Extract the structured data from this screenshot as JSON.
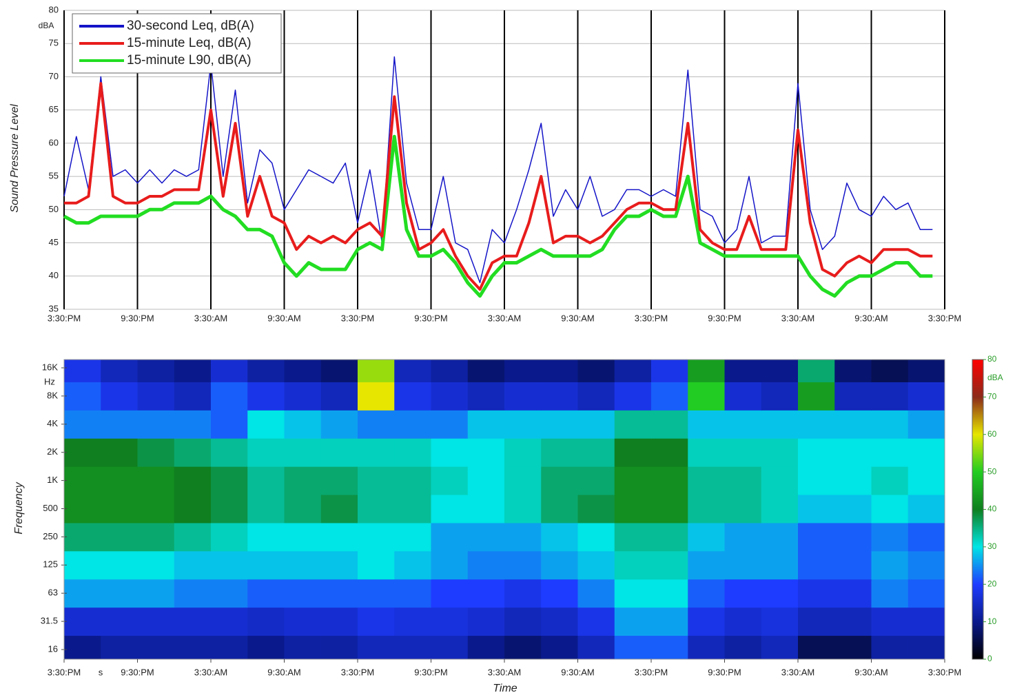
{
  "chart_data": [
    {
      "type": "line",
      "ylabel": "Sound Pressure Level",
      "y_unit": "dBA",
      "x": [
        0,
        1,
        2,
        3,
        4,
        5,
        6,
        7,
        8,
        9,
        10,
        11,
        12,
        13,
        14,
        15,
        16,
        17,
        18,
        19,
        20,
        21,
        22,
        23,
        24,
        25,
        26,
        27,
        28,
        29,
        30,
        31,
        32,
        33,
        34,
        35,
        36,
        37,
        38,
        39,
        40,
        41,
        42,
        43,
        44,
        45,
        46,
        47,
        48,
        49,
        50,
        51,
        52,
        53,
        54,
        55,
        56,
        57,
        58,
        59,
        60,
        61,
        62,
        63,
        64,
        65,
        66,
        67,
        68,
        69,
        70,
        71
      ],
      "series": [
        {
          "name": "30-second Leq, dB(A)",
          "color": "#1414c8",
          "values": [
            52,
            61,
            53,
            70,
            55,
            56,
            54,
            56,
            54,
            56,
            55,
            56,
            72,
            55,
            68,
            51,
            59,
            57,
            50,
            53,
            56,
            55,
            54,
            57,
            48,
            56,
            45,
            73,
            54,
            47,
            47,
            55,
            45,
            44,
            39,
            47,
            45,
            50,
            56,
            63,
            49,
            53,
            50,
            55,
            49,
            50,
            53,
            53,
            52,
            53,
            52,
            71,
            50,
            49,
            45,
            47,
            55,
            45,
            46,
            46,
            69,
            50,
            44,
            46,
            54,
            50,
            49,
            52,
            50,
            51,
            47,
            47
          ]
        },
        {
          "name": "15-minute Leq, dB(A)",
          "color": "#e81c1c",
          "values": [
            51,
            51,
            52,
            69,
            52,
            51,
            51,
            52,
            52,
            53,
            53,
            53,
            65,
            52,
            63,
            49,
            55,
            49,
            48,
            44,
            46,
            45,
            46,
            45,
            47,
            48,
            46,
            67,
            51,
            44,
            45,
            47,
            43,
            40,
            38,
            42,
            43,
            43,
            48,
            55,
            45,
            46,
            46,
            45,
            46,
            48,
            50,
            51,
            51,
            50,
            50,
            63,
            47,
            45,
            44,
            44,
            49,
            44,
            44,
            44,
            62,
            48,
            41,
            40,
            42,
            43,
            42,
            44,
            44,
            44,
            43,
            43
          ]
        },
        {
          "name": "15-minute L90, dB(A)",
          "color": "#22dd22",
          "values": [
            49,
            48,
            48,
            49,
            49,
            49,
            49,
            50,
            50,
            51,
            51,
            51,
            52,
            50,
            49,
            47,
            47,
            46,
            42,
            40,
            42,
            41,
            41,
            41,
            44,
            45,
            44,
            61,
            47,
            43,
            43,
            44,
            42,
            39,
            37,
            40,
            42,
            42,
            43,
            44,
            43,
            43,
            43,
            43,
            44,
            47,
            49,
            49,
            50,
            49,
            49,
            55,
            45,
            44,
            43,
            43,
            43,
            43,
            43,
            43,
            43,
            40,
            38,
            37,
            39,
            40,
            40,
            41,
            42,
            42,
            40,
            40
          ]
        }
      ],
      "xlim": [
        0,
        72
      ],
      "xticks": [
        {
          "value": 0,
          "label": "3:30:PM"
        },
        {
          "value": 6,
          "label": "9:30:PM"
        },
        {
          "value": 12,
          "label": "3:30:AM"
        },
        {
          "value": 18,
          "label": "9:30:AM"
        },
        {
          "value": 24,
          "label": "3:30:PM"
        },
        {
          "value": 30,
          "label": "9:30:PM"
        },
        {
          "value": 36,
          "label": "3:30:AM"
        },
        {
          "value": 42,
          "label": "9:30:AM"
        },
        {
          "value": 48,
          "label": "3:30:PM"
        },
        {
          "value": 54,
          "label": "9:30:PM"
        },
        {
          "value": 60,
          "label": "3:30:AM"
        },
        {
          "value": 66,
          "label": "9:30:AM"
        },
        {
          "value": 72,
          "label": "3:30:PM"
        }
      ],
      "ylim": [
        35,
        80
      ],
      "yticks": [
        35,
        40,
        45,
        50,
        55,
        60,
        65,
        70,
        75,
        80
      ],
      "grid": true,
      "legend": "upper-left"
    },
    {
      "type": "heatmap",
      "ylabel": "Frequency",
      "xlabel": "Time",
      "y_unit": "Hz",
      "x_note": "s",
      "y_categories": [
        "16",
        "31.5",
        "63",
        "125",
        "250",
        "500",
        "1K",
        "2K",
        "4K",
        "8K",
        "16K"
      ],
      "xbins": [
        0,
        3,
        6,
        9,
        12,
        15,
        18,
        21,
        24,
        27,
        30,
        33,
        36,
        39,
        42,
        45,
        48,
        51,
        54,
        57,
        60,
        63,
        66,
        69,
        72
      ],
      "values": [
        [
          10,
          12,
          12,
          12,
          12,
          10,
          12,
          12,
          14,
          14,
          14,
          10,
          8,
          10,
          14,
          22,
          22,
          14,
          12,
          14,
          6,
          6,
          12,
          12
        ],
        [
          16,
          16,
          16,
          16,
          16,
          15,
          16,
          16,
          18,
          17,
          17,
          16,
          14,
          15,
          18,
          26,
          26,
          18,
          16,
          17,
          14,
          14,
          16,
          16
        ],
        [
          26,
          26,
          26,
          24,
          24,
          22,
          22,
          22,
          22,
          22,
          20,
          20,
          18,
          20,
          24,
          30,
          30,
          22,
          20,
          20,
          18,
          18,
          24,
          22
        ],
        [
          30,
          30,
          30,
          28,
          28,
          28,
          28,
          28,
          30,
          28,
          26,
          24,
          24,
          26,
          28,
          32,
          32,
          26,
          26,
          26,
          22,
          22,
          26,
          24
        ],
        [
          36,
          36,
          36,
          34,
          32,
          30,
          30,
          30,
          30,
          30,
          26,
          26,
          26,
          28,
          30,
          34,
          34,
          28,
          26,
          26,
          22,
          22,
          24,
          22
        ],
        [
          42,
          42,
          42,
          40,
          38,
          34,
          36,
          38,
          34,
          34,
          30,
          30,
          32,
          36,
          38,
          42,
          42,
          34,
          34,
          32,
          28,
          28,
          30,
          28
        ],
        [
          42,
          42,
          42,
          40,
          38,
          34,
          36,
          36,
          34,
          34,
          32,
          30,
          32,
          36,
          36,
          42,
          42,
          34,
          34,
          32,
          30,
          30,
          32,
          30
        ],
        [
          40,
          40,
          38,
          36,
          34,
          32,
          32,
          32,
          32,
          32,
          30,
          30,
          32,
          34,
          34,
          40,
          40,
          32,
          32,
          32,
          30,
          30,
          30,
          30
        ],
        [
          24,
          24,
          24,
          24,
          22,
          30,
          28,
          26,
          24,
          24,
          24,
          28,
          28,
          28,
          28,
          34,
          34,
          28,
          28,
          28,
          28,
          28,
          28,
          26
        ],
        [
          22,
          18,
          16,
          14,
          22,
          18,
          16,
          14,
          60,
          18,
          16,
          14,
          16,
          16,
          14,
          18,
          22,
          50,
          16,
          14,
          44,
          14,
          14,
          16
        ],
        [
          18,
          14,
          12,
          10,
          16,
          12,
          10,
          8,
          56,
          14,
          12,
          8,
          10,
          10,
          8,
          12,
          18,
          44,
          10,
          10,
          36,
          8,
          6,
          8
        ]
      ],
      "xlim": [
        0,
        72
      ],
      "xticks": [
        {
          "value": 0,
          "label": "3:30:PM"
        },
        {
          "value": 6,
          "label": "9:30:PM"
        },
        {
          "value": 12,
          "label": "3:30:AM"
        },
        {
          "value": 18,
          "label": "9:30:AM"
        },
        {
          "value": 24,
          "label": "3:30:PM"
        },
        {
          "value": 30,
          "label": "9:30:PM"
        },
        {
          "value": 36,
          "label": "3:30:AM"
        },
        {
          "value": 42,
          "label": "9:30:AM"
        },
        {
          "value": 48,
          "label": "3:30:PM"
        },
        {
          "value": 54,
          "label": "9:30:PM"
        },
        {
          "value": 60,
          "label": "3:30:AM"
        },
        {
          "value": 66,
          "label": "9:30:AM"
        },
        {
          "value": 72,
          "label": "3:30:PM"
        }
      ],
      "colorscale": [
        [
          0,
          "#000000"
        ],
        [
          10,
          "#0a1a8c"
        ],
        [
          20,
          "#1e3cff"
        ],
        [
          30,
          "#00e5e5"
        ],
        [
          40,
          "#0f7f1f"
        ],
        [
          50,
          "#22cc22"
        ],
        [
          60,
          "#e6e600"
        ],
        [
          70,
          "#8b2a1a"
        ],
        [
          80,
          "#ff0000"
        ]
      ],
      "clim": [
        0,
        80
      ],
      "cticks": [
        0,
        10,
        20,
        30,
        40,
        50,
        60,
        70,
        80
      ],
      "c_unit": "dBA"
    }
  ]
}
